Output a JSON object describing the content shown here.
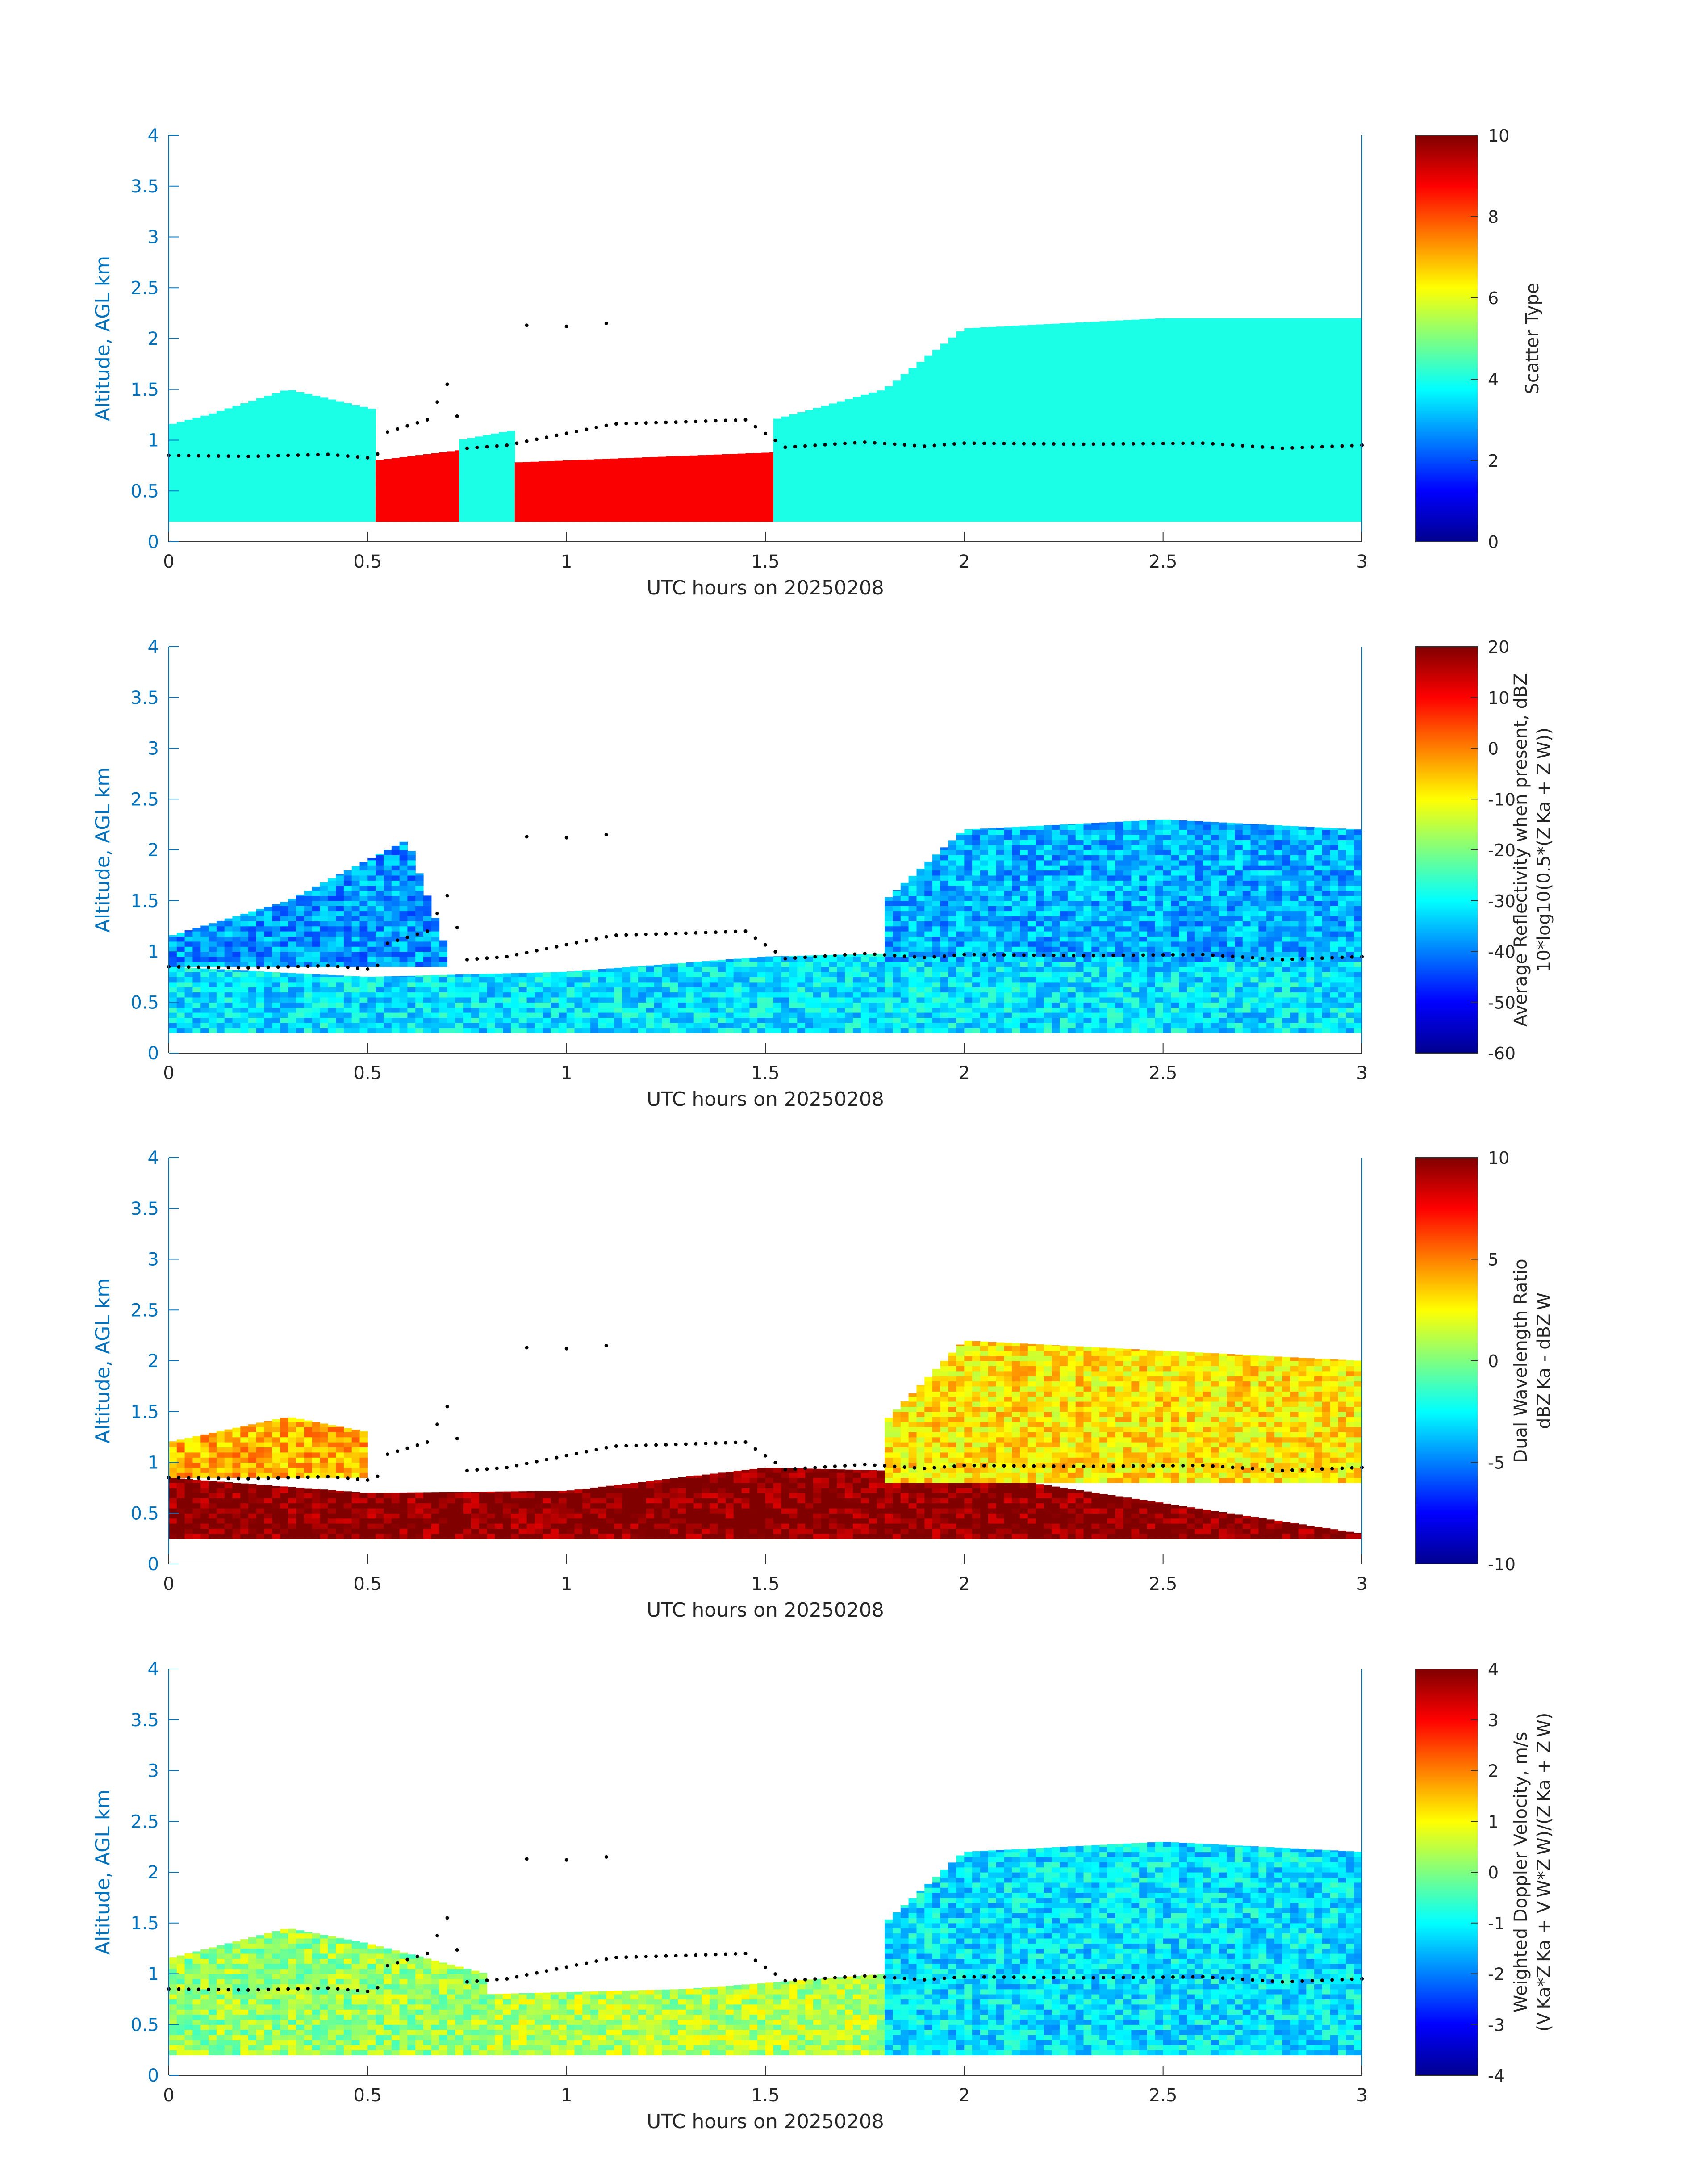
{
  "figure": {
    "panels": [
      {
        "xlabel": "UTC hours on 20250208",
        "ylabel": "Altitude, AGL km",
        "colorbar_label_lines": [
          "Scatter Type"
        ],
        "colorbar_ticks": [
          "0",
          "2",
          "4",
          "6",
          "8",
          "10"
        ],
        "clim": [
          0,
          10
        ]
      },
      {
        "xlabel": "UTC hours on 20250208",
        "ylabel": "Altitude, AGL km",
        "colorbar_label_lines": [
          "Average Reflectivity when present, dBZ",
          "10*log10(0.5*(Z_Ka + Z_W))"
        ],
        "colorbar_ticks": [
          "-60",
          "-50",
          "-40",
          "-30",
          "-20",
          "-10",
          "0",
          "10",
          "20"
        ],
        "clim": [
          -60,
          20
        ]
      },
      {
        "xlabel": "UTC hours on 20250208",
        "ylabel": "Altitude, AGL km",
        "colorbar_label_lines": [
          "Dual Wavelength Ratio",
          "dBZ_Ka - dBZ_W"
        ],
        "colorbar_ticks": [
          "-10",
          "-5",
          "0",
          "5",
          "10"
        ],
        "clim": [
          -10,
          10
        ]
      },
      {
        "xlabel": "UTC hours on 20250208",
        "ylabel": "Altitude, AGL km",
        "colorbar_label_lines": [
          "Weighted Doppler Velocity, m/s",
          "(V_Ka*Z_Ka + V_W*Z_W)/(Z_Ka + Z_W)"
        ],
        "colorbar_ticks": [
          "-4",
          "-3",
          "-2",
          "-1",
          "0",
          "1",
          "2",
          "3",
          "4"
        ],
        "clim": [
          -4,
          4
        ]
      }
    ],
    "x_ticks": [
      "0",
      "0.5",
      "1",
      "1.5",
      "2",
      "2.5",
      "3"
    ],
    "y_ticks": [
      "0",
      "0.5",
      "1",
      "1.5",
      "2",
      "2.5",
      "3",
      "3.5",
      "4"
    ]
  },
  "chart_data": [
    {
      "type": "heatmap",
      "variable": "Scatter Type",
      "xlim": [
        0,
        3
      ],
      "ylim": [
        0,
        4
      ],
      "clim": [
        0,
        10
      ],
      "colormap": "jet",
      "cloud_base_km": [
        [
          0,
          0.85
        ],
        [
          0.2,
          0.84
        ],
        [
          0.4,
          0.86
        ],
        [
          0.52,
          0.82
        ],
        [
          0.55,
          1.08
        ],
        [
          0.65,
          1.2
        ],
        [
          0.7,
          1.55
        ],
        [
          0.75,
          0.92
        ],
        [
          0.85,
          0.95
        ],
        [
          1.12,
          1.16
        ],
        [
          1.3,
          1.18
        ],
        [
          1.45,
          1.2
        ],
        [
          1.55,
          0.93
        ],
        [
          1.75,
          0.98
        ],
        [
          1.9,
          0.94
        ],
        [
          2.0,
          0.97
        ],
        [
          2.3,
          0.96
        ],
        [
          2.6,
          0.97
        ],
        [
          2.8,
          0.92
        ],
        [
          3.0,
          0.95
        ]
      ],
      "upper_cloud_km": [
        [
          0.9,
          2.13
        ],
        [
          1.0,
          2.12
        ],
        [
          1.1,
          2.15
        ]
      ],
      "segments": [
        {
          "x0": 0.0,
          "x1": 0.52,
          "ybase": 0.2,
          "ytop": [
            [
              0,
              1.15
            ],
            [
              0.1,
              1.25
            ],
            [
              0.3,
              1.5
            ],
            [
              0.52,
              1.3
            ]
          ],
          "value": 4
        },
        {
          "x0": 0.52,
          "x1": 0.73,
          "ybase": 0.2,
          "ytop": [
            [
              0.52,
              0.8
            ],
            [
              0.73,
              0.9
            ]
          ],
          "value": 8.8
        },
        {
          "x0": 0.73,
          "x1": 0.87,
          "ybase": 0.2,
          "ytop": [
            [
              0.73,
              1.0
            ],
            [
              0.87,
              1.1
            ]
          ],
          "value": 4
        },
        {
          "x0": 0.87,
          "x1": 1.52,
          "ybase": 0.2,
          "ytop": [
            [
              0.87,
              0.78
            ],
            [
              1.52,
              0.88
            ]
          ],
          "value": 8.8
        },
        {
          "x0": 1.52,
          "x1": 3.0,
          "ybase": 0.2,
          "ytop": [
            [
              1.52,
              1.2
            ],
            [
              1.8,
              1.5
            ],
            [
              2.0,
              2.1
            ],
            [
              2.5,
              2.2
            ],
            [
              3.0,
              2.2
            ]
          ],
          "value": 4
        }
      ]
    },
    {
      "type": "heatmap",
      "variable": "Average Reflectivity when present, dBZ",
      "xlim": [
        0,
        3
      ],
      "ylim": [
        0,
        4
      ],
      "clim": [
        -60,
        20
      ],
      "colormap": "jet",
      "layers": [
        {
          "x0": 0,
          "x1": 3,
          "ybase": 0.2,
          "ytop": [
            [
              0,
              0.85
            ],
            [
              0.5,
              0.75
            ],
            [
              1.0,
              0.8
            ],
            [
              1.5,
              0.95
            ],
            [
              2.0,
              1.0
            ],
            [
              3.0,
              1.0
            ]
          ],
          "value": -32
        },
        {
          "x0": 0,
          "x1": 0.7,
          "ybase": 0.85,
          "ytop": [
            [
              0,
              1.15
            ],
            [
              0.3,
              1.5
            ],
            [
              0.6,
              2.1
            ],
            [
              0.7,
              1.0
            ]
          ],
          "value": -38
        },
        {
          "x0": 1.8,
          "x1": 3,
          "ybase": 0.9,
          "ytop": [
            [
              1.8,
              1.5
            ],
            [
              2.0,
              2.2
            ],
            [
              2.5,
              2.3
            ],
            [
              3.0,
              2.2
            ]
          ],
          "value": -36
        }
      ]
    },
    {
      "type": "heatmap",
      "variable": "Dual Wavelength Ratio",
      "xlim": [
        0,
        3
      ],
      "ylim": [
        0,
        4
      ],
      "clim": [
        -10,
        10
      ],
      "colormap": "jet",
      "layers": [
        {
          "x0": 0,
          "x1": 3,
          "ybase": 0.25,
          "ytop": [
            [
              0,
              0.85
            ],
            [
              0.5,
              0.7
            ],
            [
              1.0,
              0.72
            ],
            [
              1.5,
              0.95
            ],
            [
              2.0,
              0.9
            ],
            [
              3.0,
              0.3
            ]
          ],
          "value": 10
        },
        {
          "x0": 0,
          "x1": 0.5,
          "ybase": 0.85,
          "ytop": [
            [
              0,
              1.2
            ],
            [
              0.3,
              1.45
            ],
            [
              0.5,
              1.3
            ]
          ],
          "value": 4
        },
        {
          "x0": 1.8,
          "x1": 3,
          "ybase": 0.8,
          "ytop": [
            [
              1.8,
              1.4
            ],
            [
              2.0,
              2.2
            ],
            [
              2.5,
              2.1
            ],
            [
              3.0,
              2.0
            ]
          ],
          "value": 3
        }
      ]
    },
    {
      "type": "heatmap",
      "variable": "Weighted Doppler Velocity, m/s",
      "xlim": [
        0,
        3
      ],
      "ylim": [
        0,
        4
      ],
      "clim": [
        -4,
        4
      ],
      "colormap": "jet",
      "layers": [
        {
          "x0": 0,
          "x1": 0.8,
          "ybase": 0.2,
          "ytop": [
            [
              0,
              1.15
            ],
            [
              0.3,
              1.45
            ],
            [
              0.5,
              1.3
            ],
            [
              0.8,
              1.0
            ]
          ],
          "value": 0.2
        },
        {
          "x0": 0.8,
          "x1": 1.8,
          "ybase": 0.2,
          "ytop": [
            [
              0.8,
              0.8
            ],
            [
              1.3,
              0.85
            ],
            [
              1.8,
              1.0
            ]
          ],
          "value": 0.4
        },
        {
          "x0": 1.8,
          "x1": 3.0,
          "ybase": 0.2,
          "ytop": [
            [
              1.8,
              1.5
            ],
            [
              2.0,
              2.2
            ],
            [
              2.5,
              2.3
            ],
            [
              3.0,
              2.2
            ]
          ],
          "value": -1.2
        }
      ]
    }
  ]
}
